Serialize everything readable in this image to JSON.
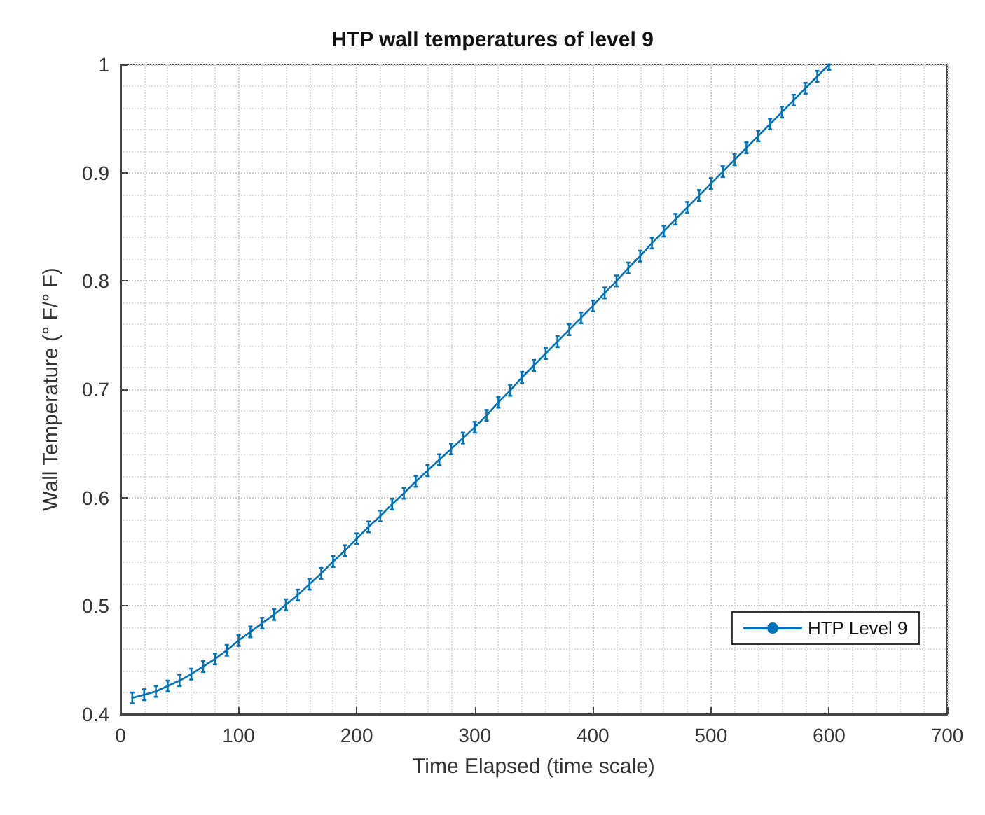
{
  "chart_data": {
    "type": "line",
    "title": "HTP wall temperatures of level 9",
    "xlabel": "Time Elapsed (time scale)",
    "ylabel": "Wall Temperature (° F/° F)",
    "x": [
      10,
      20,
      30,
      40,
      50,
      60,
      70,
      80,
      90,
      100,
      110,
      120,
      130,
      140,
      150,
      160,
      170,
      180,
      190,
      200,
      210,
      220,
      230,
      240,
      250,
      260,
      270,
      280,
      290,
      300,
      310,
      320,
      330,
      340,
      350,
      360,
      370,
      380,
      390,
      400,
      410,
      420,
      430,
      440,
      450,
      460,
      470,
      480,
      490,
      500,
      510,
      520,
      530,
      540,
      550,
      560,
      570,
      580,
      590,
      600
    ],
    "series": [
      {
        "name": "HTP Level 9",
        "color": "#0072bd",
        "values": [
          0.415,
          0.418,
          0.421,
          0.426,
          0.431,
          0.437,
          0.444,
          0.451,
          0.459,
          0.468,
          0.476,
          0.484,
          0.492,
          0.501,
          0.51,
          0.52,
          0.53,
          0.541,
          0.551,
          0.562,
          0.573,
          0.583,
          0.594,
          0.604,
          0.615,
          0.625,
          0.635,
          0.645,
          0.655,
          0.665,
          0.676,
          0.688,
          0.699,
          0.711,
          0.722,
          0.733,
          0.744,
          0.755,
          0.766,
          0.777,
          0.789,
          0.8,
          0.812,
          0.823,
          0.835,
          0.846,
          0.857,
          0.868,
          0.879,
          0.89,
          0.901,
          0.912,
          0.923,
          0.934,
          0.945,
          0.956,
          0.967,
          0.978,
          0.989,
          1.0
        ],
        "errors": [
          0.005,
          0.005,
          0.005,
          0.005,
          0.005,
          0.005,
          0.005,
          0.005,
          0.005,
          0.005,
          0.005,
          0.005,
          0.005,
          0.005,
          0.005,
          0.005,
          0.005,
          0.005,
          0.005,
          0.005,
          0.005,
          0.005,
          0.005,
          0.005,
          0.005,
          0.005,
          0.005,
          0.005,
          0.005,
          0.005,
          0.005,
          0.005,
          0.005,
          0.005,
          0.005,
          0.005,
          0.005,
          0.005,
          0.005,
          0.005,
          0.005,
          0.005,
          0.005,
          0.005,
          0.005,
          0.005,
          0.005,
          0.005,
          0.005,
          0.005,
          0.005,
          0.005,
          0.005,
          0.005,
          0.005,
          0.005,
          0.005,
          0.005,
          0.005,
          [
            0.995,
            1.0
          ]
        ]
      }
    ],
    "xlim": [
      0,
      700
    ],
    "xticks": [
      0,
      100,
      200,
      300,
      400,
      500,
      600,
      700
    ],
    "ylim": [
      0.4,
      1
    ],
    "yticks": [
      0.4,
      0.5,
      0.6,
      0.7,
      0.8,
      0.9,
      1
    ],
    "grid": true,
    "legend": "bottom right",
    "marker": "none",
    "line_style": "solid"
  }
}
